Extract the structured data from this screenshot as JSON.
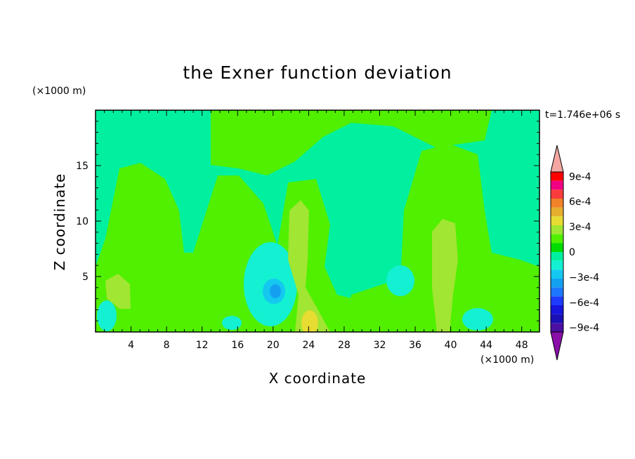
{
  "chart_data": {
    "type": "heatmap",
    "title": "the Exner function deviation",
    "xlabel": "X coordinate",
    "ylabel": "Z coordinate",
    "x_unit": "(×1000 m)",
    "y_unit": "(×1000 m)",
    "time_label": "t=1.746e+06 s",
    "xlim": [
      0,
      50
    ],
    "ylim": [
      0,
      20
    ],
    "x_ticks": [
      "4",
      "8",
      "12",
      "16",
      "20",
      "24",
      "28",
      "32",
      "36",
      "40",
      "44",
      "48"
    ],
    "y_ticks": [
      "5",
      "10",
      "15"
    ],
    "colorbar": {
      "labels": [
        "9e-4",
        "6e-4",
        "3e-4",
        "0",
        "−3e-4",
        "−6e-4",
        "−9e-4"
      ],
      "levels": [
        -0.0009,
        -0.0008,
        -0.0007,
        -0.0006,
        -0.0005,
        -0.0004,
        -0.0003,
        -0.0002,
        -0.0001,
        0,
        0.0001,
        0.0002,
        0.0003,
        0.0004,
        0.0005,
        0.0006,
        0.0007,
        0.0008,
        0.0009
      ],
      "colors": [
        "#4b0fa3",
        "#1a10b5",
        "#1515dc",
        "#1e3cff",
        "#1e78ff",
        "#14a0f0",
        "#14c8f0",
        "#14f0d2",
        "#00f0a0",
        "#00dc00",
        "#50f000",
        "#a0e632",
        "#e6dc32",
        "#e6af2d",
        "#f08228",
        "#fa3c3c",
        "#f00082",
        "#ff0000"
      ],
      "under_color": "#8a10a8",
      "over_color": "#f4a7a2"
    },
    "background_value": -5e-05,
    "features": [
      {
        "x": 4.5,
        "z": 10.5,
        "value": 5e-05
      },
      {
        "x": 10,
        "z": 2.5,
        "value": 5e-05
      },
      {
        "x": 20,
        "z": 3.8,
        "value": -0.00035
      },
      {
        "x": 23.5,
        "z": 7,
        "value": 0.00015
      },
      {
        "x": 24,
        "z": 1,
        "value": 0.0003
      },
      {
        "x": 39,
        "z": 6,
        "value": 0.00015
      },
      {
        "x": 1.5,
        "z": 1.5,
        "value": -0.00015
      },
      {
        "x": 43,
        "z": 1.5,
        "value": -0.00015
      }
    ]
  }
}
